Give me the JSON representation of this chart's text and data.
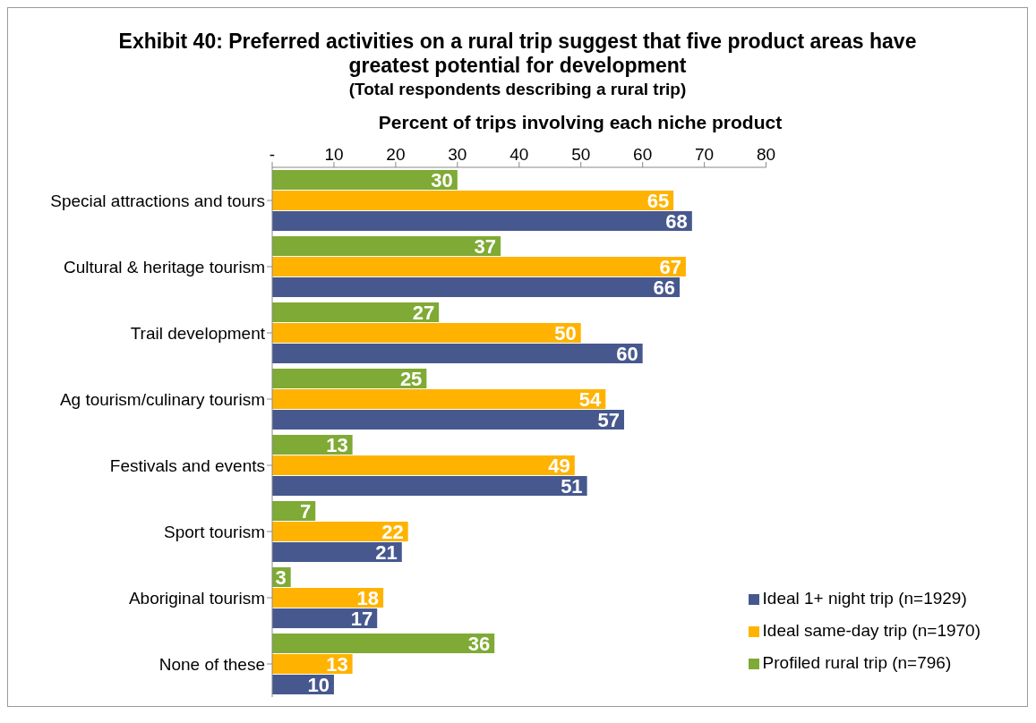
{
  "chart_data": {
    "type": "bar",
    "orientation": "horizontal",
    "title": "Exhibit 40: Preferred activities on a rural trip suggest that five product areas have greatest potential for development",
    "subtitle": "(Total respondents describing a rural trip)",
    "xlabel": "Percent of trips involving each niche product",
    "categories": [
      "Special attractions and tours",
      "Cultural & heritage tourism",
      "Trail development",
      "Ag tourism/culinary tourism",
      "Festivals and events",
      "Sport tourism",
      "Aboriginal tourism",
      "None of these"
    ],
    "series": [
      {
        "name": "Profiled rural trip (n=796)",
        "color": "#7faa35",
        "values": [
          30,
          37,
          27,
          25,
          13,
          7,
          3,
          36
        ]
      },
      {
        "name": "Ideal same-day trip (n=1970)",
        "color": "#ffb300",
        "values": [
          65,
          67,
          50,
          54,
          49,
          22,
          18,
          13
        ]
      },
      {
        "name": "Ideal 1+ night trip (n=1929)",
        "color": "#46588e",
        "values": [
          68,
          66,
          60,
          57,
          51,
          21,
          17,
          10
        ]
      }
    ],
    "xlim": [
      0,
      80
    ],
    "xticks": [
      {
        "value": 0,
        "label": "-"
      },
      10,
      20,
      30,
      40,
      50,
      60,
      70,
      80
    ],
    "data_labels": true,
    "grid": false,
    "legend": "bottom right"
  }
}
